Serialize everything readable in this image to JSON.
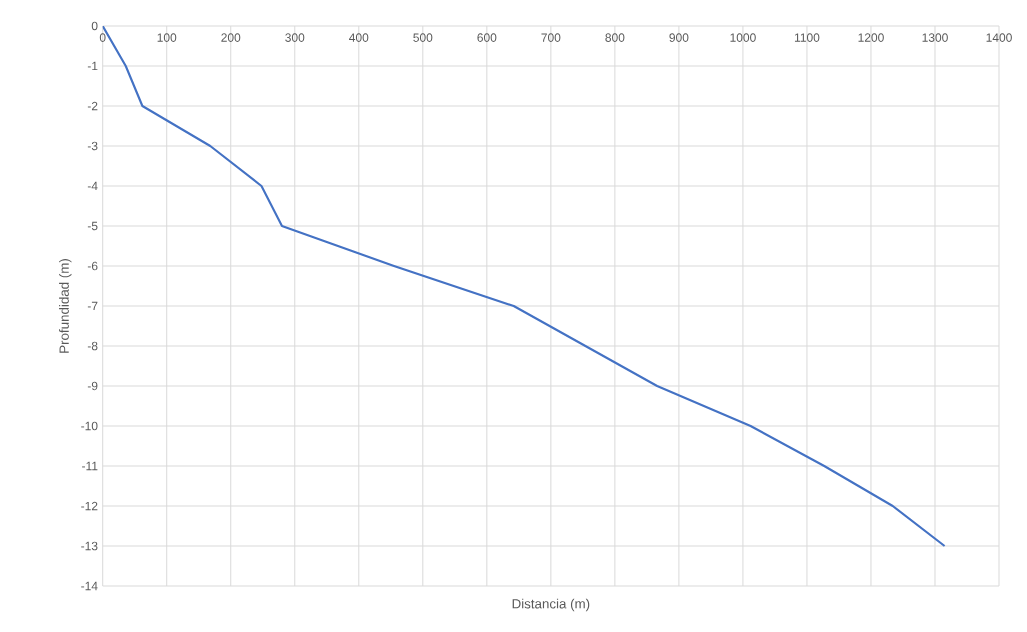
{
  "chart_data": {
    "type": "line",
    "xlabel": "Distancia (m)",
    "ylabel": "Profundidad (m)",
    "x": [
      0,
      36,
      62,
      168,
      248,
      280,
      455,
      642,
      754,
      866,
      1012,
      1127,
      1234,
      1315
    ],
    "series": [
      {
        "color": "#4472c4",
        "values": [
          0,
          -1,
          -2,
          -3,
          -4,
          -5,
          -6,
          -7,
          -8,
          -9,
          -10,
          -11,
          -12,
          -13
        ]
      }
    ],
    "xlim": [
      0,
      1400
    ],
    "xticks": [
      0,
      100,
      200,
      300,
      400,
      500,
      600,
      700,
      800,
      900,
      1000,
      1100,
      1200,
      1300,
      1400
    ],
    "ylim": [
      -14,
      0
    ],
    "yticks": [
      -14,
      -13,
      -12,
      -11,
      -10,
      -9,
      -8,
      -7,
      -6,
      -5,
      -4,
      -3,
      -2,
      -1,
      0
    ],
    "grid": true,
    "line_style": "solid"
  }
}
